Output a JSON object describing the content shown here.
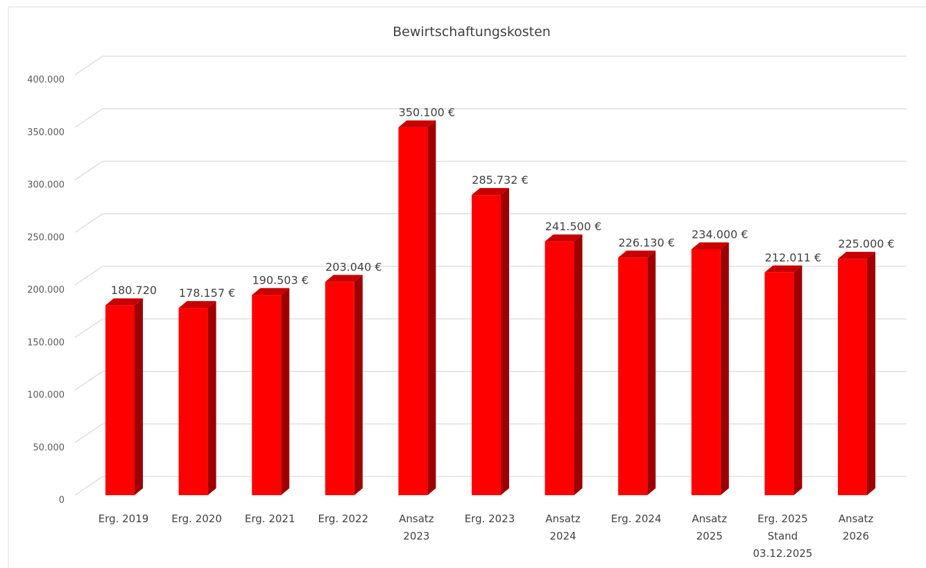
{
  "chart_data": {
    "type": "bar3d",
    "title": "Bewirtschaftungskosten",
    "categories": [
      [
        "Erg. 2019"
      ],
      [
        "Erg. 2020"
      ],
      [
        "Erg. 2021"
      ],
      [
        "Erg. 2022"
      ],
      [
        "Ansatz",
        "2023"
      ],
      [
        "Erg. 2023"
      ],
      [
        "Ansatz",
        "2024"
      ],
      [
        "Erg. 2024"
      ],
      [
        "Ansatz",
        "2025"
      ],
      [
        "Erg. 2025",
        "Stand",
        "03.12.2025"
      ],
      [
        "Ansatz",
        "2026"
      ]
    ],
    "values": [
      180720,
      178157,
      190503,
      203040,
      350100,
      285732,
      241500,
      226130,
      234000,
      212011,
      225000
    ],
    "value_labels": [
      "180.720",
      "178.157 €",
      "190.503 €",
      "203.040 €",
      "350.100 €",
      "285.732 €",
      "241.500 €",
      "226.130 €",
      "234.000 €",
      "212.011 €",
      "225.000 €"
    ],
    "color": "#ff0000",
    "ylim": [
      0,
      400000
    ],
    "yticks": [
      0,
      {
        "value": 50000,
        "label": "50.000"
      },
      {
        "value": 100000,
        "label": "100.000"
      },
      {
        "value": 150000,
        "label": "150.000"
      },
      {
        "value": 200000,
        "label": "200.000"
      },
      {
        "value": 250000,
        "label": "250.000"
      },
      {
        "value": 300000,
        "label": "300.000"
      },
      {
        "value": 350000,
        "label": "350.000"
      },
      {
        "value": 400000,
        "label": "400.000"
      }
    ],
    "grid": true
  }
}
